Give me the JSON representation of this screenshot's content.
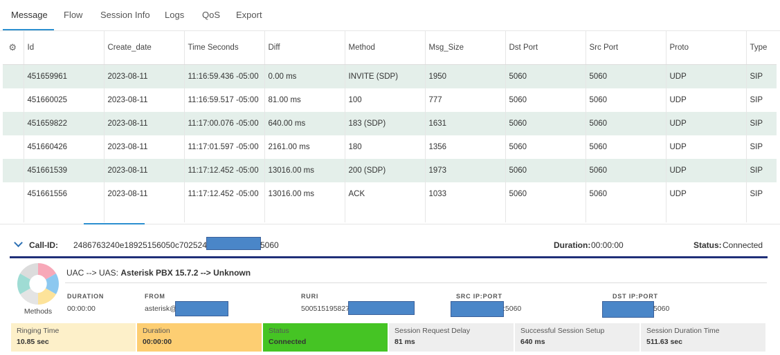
{
  "tabs": [
    {
      "label": "Message"
    },
    {
      "label": "Flow"
    },
    {
      "label": "Session Info"
    },
    {
      "label": "Logs"
    },
    {
      "label": "QoS"
    },
    {
      "label": "Export"
    }
  ],
  "table": {
    "settings_icon": "gear-icon",
    "columns": [
      "Id",
      "Create_date",
      "Time Seconds",
      "Diff",
      "Method",
      "Msg_Size",
      "Dst Port",
      "Src Port",
      "Proto",
      "Type"
    ],
    "rows": [
      [
        "451659961",
        "2023-08-11",
        "11:16:59.436 -05:00",
        "0.00 ms",
        "INVITE (SDP)",
        "1950",
        "5060",
        "5060",
        "UDP",
        "SIP"
      ],
      [
        "451660025",
        "2023-08-11",
        "11:16:59.517 -05:00",
        "81.00 ms",
        "100",
        "777",
        "5060",
        "5060",
        "UDP",
        "SIP"
      ],
      [
        "451659822",
        "2023-08-11",
        "11:17:00.076 -05:00",
        "640.00 ms",
        "183 (SDP)",
        "1631",
        "5060",
        "5060",
        "UDP",
        "SIP"
      ],
      [
        "451660426",
        "2023-08-11",
        "11:17:01.597 -05:00",
        "2161.00 ms",
        "180",
        "1356",
        "5060",
        "5060",
        "UDP",
        "SIP"
      ],
      [
        "451661539",
        "2023-08-11",
        "11:17:12.452 -05:00",
        "13016.00 ms",
        "200 (SDP)",
        "1973",
        "5060",
        "5060",
        "UDP",
        "SIP"
      ],
      [
        "451661556",
        "2023-08-11",
        "11:17:12.452 -05:00",
        "13016.00 ms",
        "ACK",
        "1033",
        "5060",
        "5060",
        "UDP",
        "SIP"
      ]
    ]
  },
  "call": {
    "callid_label": "Call-ID:",
    "callid_prefix": "2486763240e18925156050c70252407e@",
    "callid_suffix": "5060",
    "duration_label": "Duration:",
    "duration_value": "00:00:00",
    "status_label": "Status:",
    "status_value": "Connected"
  },
  "session": {
    "methods_label": "Methods",
    "uac_prefix": "UAC --> UAS:",
    "uac_value": "Asterisk PBX 15.7.2 --> Unknown",
    "fields": {
      "duration_label": "DURATION",
      "duration_value": "00:00:00",
      "from_label": "FROM",
      "from_value": "asterisk@",
      "ruri_label": "RURI",
      "ruri_value": "5005151958270",
      "src_label": "SRC IP:PORT",
      "src_value": ":5060",
      "dst_label": "DST IP:PORT",
      "dst_value": "5060"
    },
    "cards": [
      {
        "title": "Ringing Time",
        "value": "10.85 sec",
        "color": "#fdf0c9"
      },
      {
        "title": "Duration",
        "value": "00:00:00",
        "color": "#fdce72"
      },
      {
        "title": "Status",
        "value": "Connected",
        "color": "#45c424"
      },
      {
        "title": "Session Request Delay",
        "value": "81 ms",
        "color": "#eeeeee"
      },
      {
        "title": "Successful Session Setup",
        "value": "640 ms",
        "color": "#eeeeee"
      },
      {
        "title": "Session Duration Time",
        "value": "511.63 sec",
        "color": "#eeeeee"
      }
    ]
  }
}
